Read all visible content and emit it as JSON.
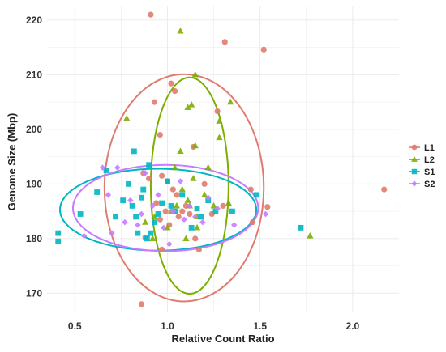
{
  "chart_data": {
    "type": "scatter",
    "title": "",
    "xlabel": "Relative Count Ratio",
    "ylabel": "Genome Size (Mbp)",
    "xlim": [
      0.35,
      2.25
    ],
    "ylim": [
      166.5,
      222.5
    ],
    "x_ticks": [
      "0.5",
      "1.0",
      "1.5",
      "2.0"
    ],
    "x_tick_values": [
      0.5,
      1.0,
      1.5,
      2.0
    ],
    "y_ticks": [
      "170",
      "180",
      "190",
      "200",
      "210",
      "220"
    ],
    "y_tick_values": [
      170,
      180,
      190,
      200,
      210,
      220
    ],
    "grid": true,
    "legend_position": "right",
    "series": [
      {
        "name": "L1",
        "color": "#E07B6F",
        "shape": "circle",
        "points": [
          [
            0.91,
            221
          ],
          [
            1.31,
            216
          ],
          [
            1.52,
            214.6
          ],
          [
            0.93,
            205
          ],
          [
            1.02,
            208.4
          ],
          [
            1.04,
            207
          ],
          [
            1.14,
            196.8
          ],
          [
            1.27,
            203.3
          ],
          [
            0.96,
            199
          ],
          [
            0.87,
            192
          ],
          [
            0.9,
            191
          ],
          [
            0.97,
            191.5
          ],
          [
            1.0,
            190.5
          ],
          [
            1.05,
            188
          ],
          [
            1.1,
            186
          ],
          [
            0.96,
            183.5
          ],
          [
            1.01,
            182.5
          ],
          [
            1.06,
            184
          ],
          [
            1.12,
            184.5
          ],
          [
            1.24,
            184.5
          ],
          [
            1.3,
            186
          ],
          [
            0.86,
            168
          ],
          [
            0.97,
            178
          ],
          [
            1.17,
            178
          ],
          [
            1.46,
            183
          ],
          [
            1.54,
            185.8
          ],
          [
            2.17,
            189
          ],
          [
            0.99,
            185
          ],
          [
            1.08,
            185
          ],
          [
            0.94,
            186.5
          ],
          [
            1.03,
            189
          ],
          [
            1.2,
            190
          ],
          [
            1.45,
            189
          ],
          [
            0.88,
            180.2
          ],
          [
            1.15,
            180
          ]
        ]
      },
      {
        "name": "L2",
        "color": "#7CAE00",
        "shape": "triangle",
        "points": [
          [
            1.07,
            218
          ],
          [
            1.15,
            210
          ],
          [
            1.34,
            205
          ],
          [
            1.11,
            204
          ],
          [
            1.13,
            204.5
          ],
          [
            1.07,
            196
          ],
          [
            1.15,
            197
          ],
          [
            1.28,
            198.5
          ],
          [
            1.28,
            201.5
          ],
          [
            0.78,
            202
          ],
          [
            1.04,
            193
          ],
          [
            1.14,
            191
          ],
          [
            1.22,
            193
          ],
          [
            1.08,
            189
          ],
          [
            1.11,
            187
          ],
          [
            1.2,
            188
          ],
          [
            1.25,
            186
          ],
          [
            1.16,
            184
          ],
          [
            0.93,
            184
          ],
          [
            1.0,
            182
          ],
          [
            1.05,
            186
          ],
          [
            1.1,
            180
          ],
          [
            1.33,
            186.5
          ],
          [
            1.77,
            180.5
          ],
          [
            0.92,
            180
          ],
          [
            1.12,
            186
          ],
          [
            1.02,
            185
          ],
          [
            1.16,
            182
          ],
          [
            0.88,
            183
          ]
        ]
      },
      {
        "name": "S1",
        "color": "#00B6C4",
        "shape": "square",
        "points": [
          [
            0.41,
            179.5
          ],
          [
            0.41,
            181
          ],
          [
            0.53,
            184.5
          ],
          [
            0.62,
            188.5
          ],
          [
            0.67,
            192.5
          ],
          [
            0.76,
            187
          ],
          [
            0.79,
            190
          ],
          [
            0.82,
            196
          ],
          [
            0.83,
            184
          ],
          [
            0.86,
            187.5
          ],
          [
            0.89,
            180
          ],
          [
            0.91,
            181
          ],
          [
            0.93,
            183
          ],
          [
            0.95,
            184.5
          ],
          [
            0.97,
            186.5
          ],
          [
            1.0,
            190.5
          ],
          [
            1.04,
            185
          ],
          [
            1.08,
            188
          ],
          [
            1.13,
            182
          ],
          [
            1.18,
            184
          ],
          [
            1.22,
            187
          ],
          [
            1.26,
            185
          ],
          [
            1.35,
            185
          ],
          [
            1.48,
            188
          ],
          [
            1.72,
            182
          ],
          [
            0.72,
            184
          ],
          [
            0.87,
            189
          ],
          [
            0.84,
            181
          ],
          [
            0.9,
            193.5
          ],
          [
            1.02,
            186
          ],
          [
            1.16,
            185.5
          ],
          [
            0.81,
            186
          ]
        ]
      },
      {
        "name": "S2",
        "color": "#C77CFF",
        "shape": "diamond",
        "points": [
          [
            0.55,
            180.5
          ],
          [
            0.65,
            193
          ],
          [
            0.68,
            188
          ],
          [
            0.73,
            193
          ],
          [
            0.77,
            183
          ],
          [
            0.8,
            187
          ],
          [
            0.84,
            182.5
          ],
          [
            0.88,
            192
          ],
          [
            0.92,
            186
          ],
          [
            0.95,
            188
          ],
          [
            0.98,
            182
          ],
          [
            1.03,
            185
          ],
          [
            1.07,
            190.5
          ],
          [
            1.12,
            186
          ],
          [
            1.15,
            184
          ],
          [
            1.19,
            183
          ],
          [
            1.22,
            187.5
          ],
          [
            1.27,
            185.5
          ],
          [
            1.36,
            182.5
          ],
          [
            1.53,
            184.5
          ],
          [
            0.7,
            181
          ],
          [
            0.86,
            184.5
          ],
          [
            1.01,
            179
          ],
          [
            1.09,
            183.5
          ]
        ]
      }
    ],
    "ellipses": [
      {
        "series": "L1",
        "cx": 1.09,
        "cy": 189.3,
        "rx": 0.43,
        "ry": 20.8,
        "angle_deg": 0
      },
      {
        "series": "L2",
        "cx": 1.12,
        "cy": 189.7,
        "rx": 0.21,
        "ry": 19.8,
        "angle_deg": 0
      },
      {
        "series": "S1",
        "cx": 0.95,
        "cy": 185.3,
        "rx": 0.53,
        "ry": 7.5,
        "angle_deg": 0
      },
      {
        "series": "S2",
        "cx": 0.99,
        "cy": 185.6,
        "rx": 0.5,
        "ry": 7.9,
        "angle_deg": 0
      }
    ]
  },
  "colors": {
    "panel_bg": "#ffffff",
    "grid": "#ebebeb",
    "text": "#222222"
  }
}
